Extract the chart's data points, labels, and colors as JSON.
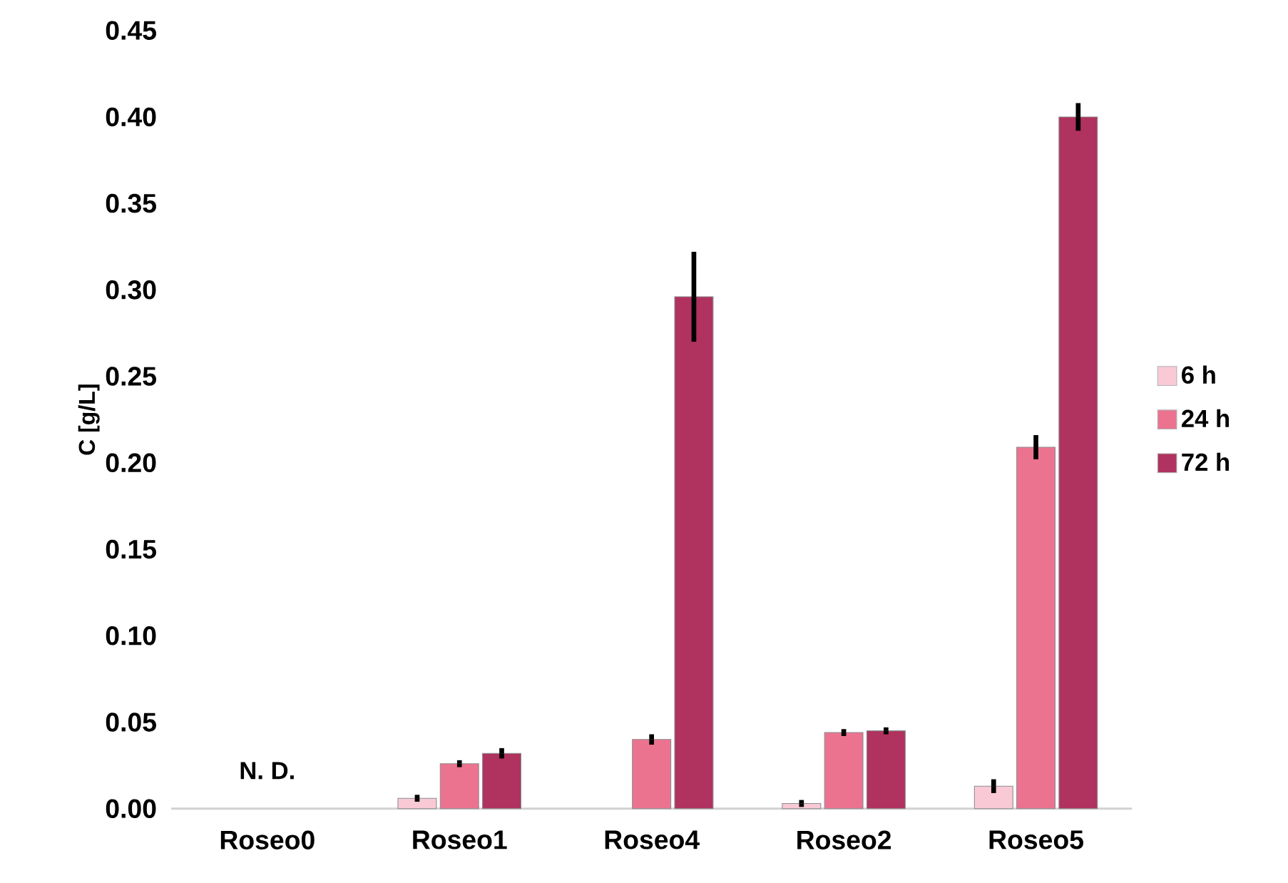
{
  "chart_data": {
    "type": "bar",
    "ylabel": "C [g/L]",
    "categories": [
      "Roseo0",
      "Roseo1",
      "Roseo4",
      "Roseo2",
      "Roseo5"
    ],
    "series": [
      {
        "name": "6 h",
        "color": "#f9c9d6",
        "values": [
          null,
          0.006,
          null,
          0.003,
          0.013
        ],
        "errors": [
          null,
          0.002,
          null,
          0.002,
          0.004
        ]
      },
      {
        "name": "24 h",
        "color": "#ec7390",
        "values": [
          null,
          0.026,
          0.04,
          0.044,
          0.209
        ],
        "errors": [
          null,
          0.002,
          0.003,
          0.002,
          0.007
        ]
      },
      {
        "name": "72 h",
        "color": "#b0325e",
        "values": [
          null,
          0.032,
          0.296,
          0.045,
          0.4
        ],
        "errors": [
          null,
          0.003,
          0.026,
          0.002,
          0.008
        ]
      }
    ],
    "ylim": [
      0,
      0.45
    ],
    "yticks": [
      {
        "value": 0,
        "label": "0.00"
      },
      {
        "value": 0.05,
        "label": "0.05"
      },
      {
        "value": 0.1,
        "label": "0.10"
      },
      {
        "value": 0.15,
        "label": "0.15"
      },
      {
        "value": 0.2,
        "label": "0.20"
      },
      {
        "value": 0.25,
        "label": "0.25"
      },
      {
        "value": 0.3,
        "label": "0.30"
      },
      {
        "value": 0.35,
        "label": "0.35"
      },
      {
        "value": 0.4,
        "label": "0.40"
      },
      {
        "value": 0.45,
        "label": "0.45"
      }
    ],
    "grid": false,
    "legend": "right",
    "annotations": [
      "N. D."
    ]
  }
}
